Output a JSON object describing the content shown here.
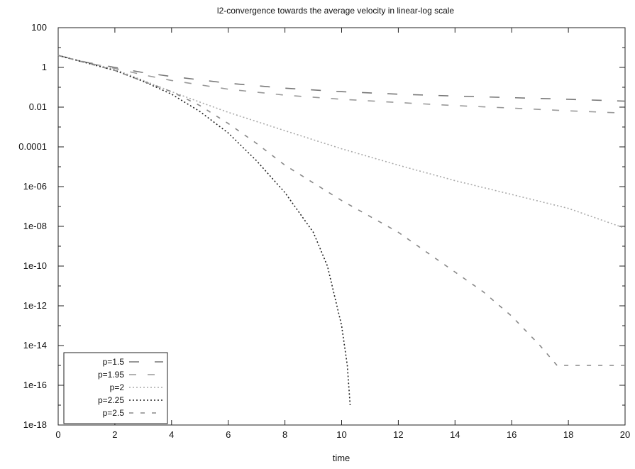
{
  "chart_data": {
    "type": "line",
    "title": "l2-convergence towards the average velocity in linear-log scale",
    "xlabel": "time",
    "ylabel": "",
    "xlim": [
      0,
      20
    ],
    "ylim": [
      1e-18,
      100
    ],
    "y_scale": "log",
    "grid": false,
    "legend_position": "bottom-left",
    "x_ticks": [
      0,
      2,
      4,
      6,
      8,
      10,
      12,
      14,
      16,
      18,
      20
    ],
    "x_tick_labels": [
      "0",
      "2",
      "4",
      "6",
      "8",
      "10",
      "12",
      "14",
      "16",
      "18",
      "20"
    ],
    "y_ticks": [
      100,
      1,
      0.01,
      0.0001,
      1e-06,
      1e-08,
      1e-10,
      1e-12,
      1e-14,
      1e-16,
      1e-18
    ],
    "y_tick_labels": [
      "100",
      "1",
      "0.01",
      "0.0001",
      "1e-06",
      "1e-08",
      "1e-10",
      "1e-12",
      "1e-14",
      "1e-16",
      "1e-18"
    ],
    "series": [
      {
        "name": "p=1.5",
        "color": "#777777",
        "dash": "14,22",
        "points": [
          [
            0,
            4
          ],
          [
            1,
            1.8
          ],
          [
            2,
            1.0
          ],
          [
            3,
            0.55
          ],
          [
            4,
            0.35
          ],
          [
            6,
            0.16
          ],
          [
            8,
            0.09
          ],
          [
            10,
            0.06
          ],
          [
            12,
            0.045
          ],
          [
            14,
            0.036
          ],
          [
            16,
            0.03
          ],
          [
            18,
            0.025
          ],
          [
            20,
            0.02
          ]
        ]
      },
      {
        "name": "p=1.95",
        "color": "#999999",
        "dash": "10,16",
        "points": [
          [
            0,
            4
          ],
          [
            1,
            1.7
          ],
          [
            2,
            0.9
          ],
          [
            3,
            0.42
          ],
          [
            4,
            0.22
          ],
          [
            6,
            0.08
          ],
          [
            8,
            0.04
          ],
          [
            10,
            0.025
          ],
          [
            12,
            0.017
          ],
          [
            14,
            0.012
          ],
          [
            16,
            0.009
          ],
          [
            18,
            0.0065
          ],
          [
            20,
            0.005
          ]
        ]
      },
      {
        "name": "p=2",
        "color": "#aaaaaa",
        "dash": "2,3",
        "points": [
          [
            0,
            4
          ],
          [
            2,
            0.8
          ],
          [
            3,
            0.22
          ],
          [
            4,
            0.06
          ],
          [
            5,
            0.018
          ],
          [
            6,
            0.0055
          ],
          [
            8,
            0.00065
          ],
          [
            10,
            8e-05
          ],
          [
            12,
            1.2e-05
          ],
          [
            14,
            2e-06
          ],
          [
            16,
            4e-07
          ],
          [
            18,
            8e-08
          ],
          [
            20,
            8e-09
          ]
        ]
      },
      {
        "name": "p=2.25",
        "color": "#222222",
        "dash": "2,3",
        "points": [
          [
            0,
            4
          ],
          [
            2,
            0.7
          ],
          [
            3,
            0.2
          ],
          [
            4,
            0.045
          ],
          [
            5,
            0.006
          ],
          [
            6,
            0.0005
          ],
          [
            7,
            2e-05
          ],
          [
            8,
            5e-07
          ],
          [
            9,
            5e-09
          ],
          [
            9.5,
            1e-10
          ],
          [
            10,
            1e-13
          ],
          [
            10.2,
            1e-15
          ],
          [
            10.3,
            1e-17
          ]
        ]
      },
      {
        "name": "p=2.5",
        "color": "#888888",
        "dash": "6,10",
        "points": [
          [
            0,
            4
          ],
          [
            2,
            0.7
          ],
          [
            3,
            0.2
          ],
          [
            4,
            0.06
          ],
          [
            5,
            0.012
          ],
          [
            6,
            0.0015
          ],
          [
            7,
            0.00015
          ],
          [
            8,
            1.2e-05
          ],
          [
            10,
            2e-07
          ],
          [
            12,
            5e-09
          ],
          [
            14,
            5e-11
          ],
          [
            15,
            5e-12
          ],
          [
            16,
            3e-13
          ],
          [
            17,
            1e-14
          ],
          [
            17.6,
            1e-15
          ],
          [
            18,
            1e-15
          ],
          [
            20,
            1e-15
          ]
        ]
      }
    ]
  }
}
